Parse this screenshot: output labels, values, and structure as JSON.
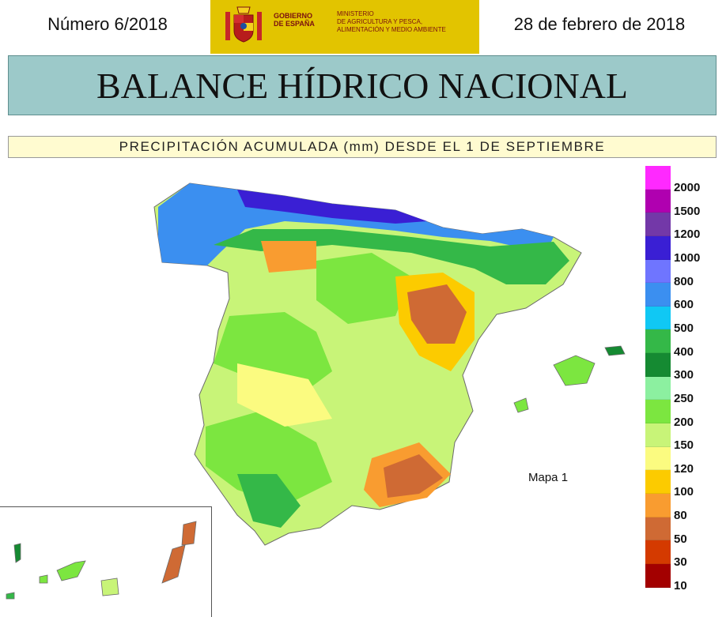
{
  "header": {
    "issue": "Número 6/2018",
    "date": "28 de febrero de 2018",
    "logo": {
      "gobierno": [
        "GOBIERNO",
        "DE ESPAÑA"
      ],
      "ministerio": [
        "MINISTERIO",
        "DE AGRICULTURA Y PESCA,",
        "ALIMENTACIÓN Y MEDIO AMBIENTE"
      ],
      "color": "#e2c400"
    }
  },
  "title": "BALANCE HÍDRICO NACIONAL",
  "subtitle": "PRECIPITACIÓN ACUMULADA (mm) DESDE EL 1 DE SEPTIEMBRE",
  "map": {
    "label": "Mapa 1",
    "legend": [
      {
        "label": "2000",
        "color": "#ff29ff"
      },
      {
        "label": "1500",
        "color": "#b000b0"
      },
      {
        "label": "1200",
        "color": "#7338a8"
      },
      {
        "label": "1000",
        "color": "#3a1fd4"
      },
      {
        "label": "800",
        "color": "#6f75ff"
      },
      {
        "label": "600",
        "color": "#3b8ff0"
      },
      {
        "label": "500",
        "color": "#10c8f4"
      },
      {
        "label": "400",
        "color": "#34b848"
      },
      {
        "label": "300",
        "color": "#158a32"
      },
      {
        "label": "250",
        "color": "#8cf0a0"
      },
      {
        "label": "200",
        "color": "#7ce640"
      },
      {
        "label": "150",
        "color": "#c8f478"
      },
      {
        "label": "120",
        "color": "#fbfb80"
      },
      {
        "label": "100",
        "color": "#fccb00"
      },
      {
        "label": "80",
        "color": "#f99c30"
      },
      {
        "label": "50",
        "color": "#cf6a34"
      },
      {
        "label": "30",
        "color": "#d43a00"
      },
      {
        "label": "10",
        "color": "#a30000"
      }
    ]
  }
}
